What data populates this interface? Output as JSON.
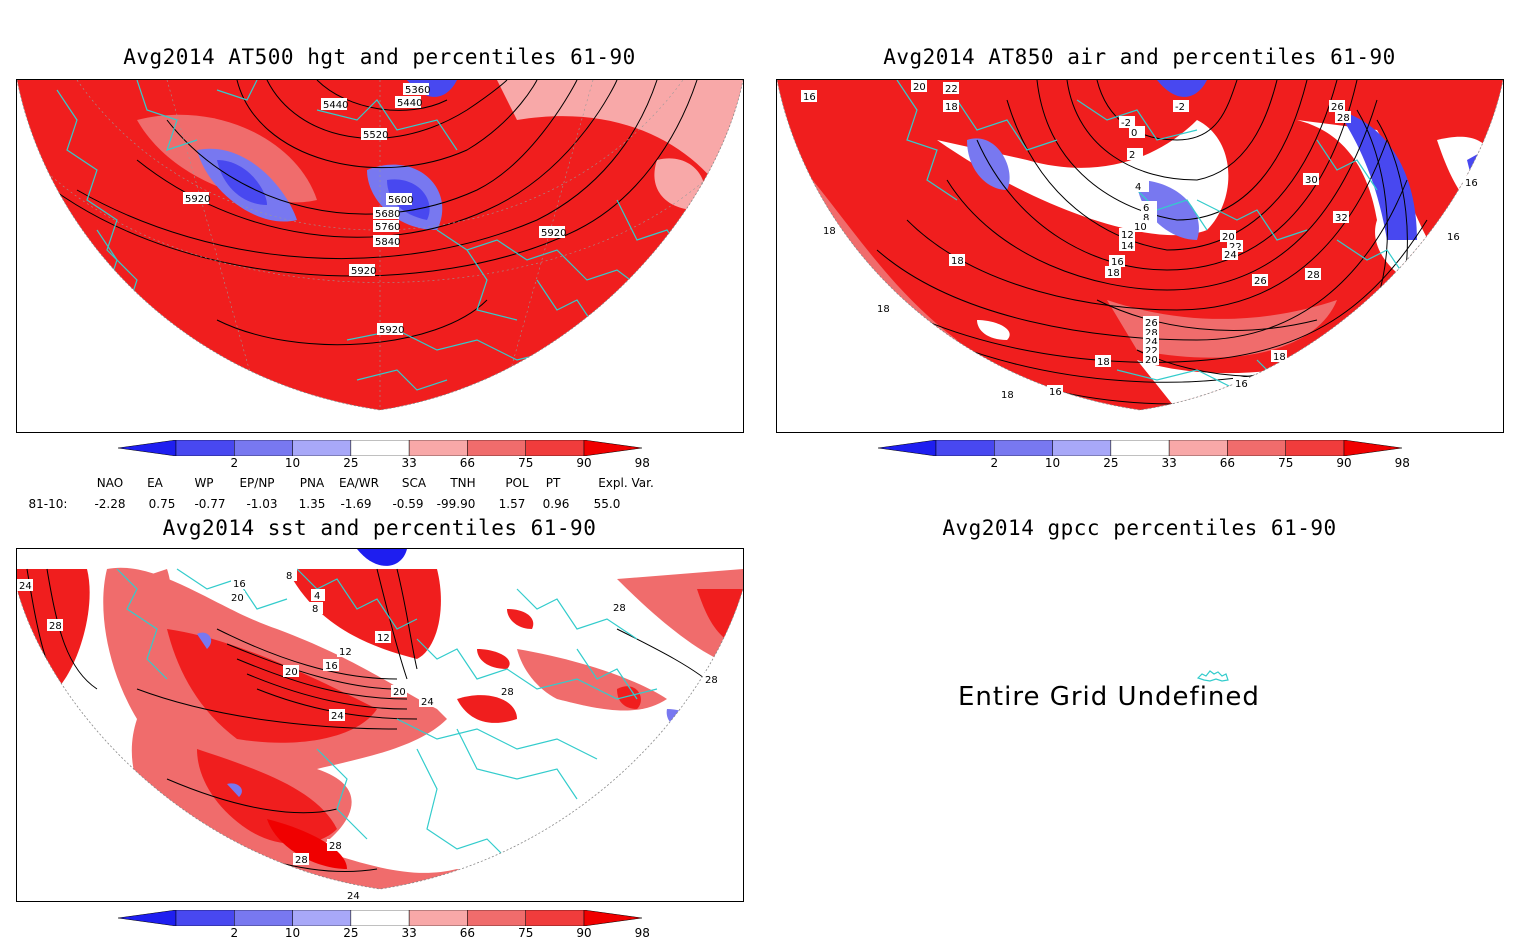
{
  "panels": [
    {
      "title": "Avg2014 AT500 hgt and percentiles 61-90",
      "contour_labels": [
        "5360",
        "5440",
        "5440",
        "5520",
        "5600",
        "5680",
        "5760",
        "5840",
        "5920",
        "5920",
        "5920",
        "5920"
      ]
    },
    {
      "title": "Avg2014 AT850 air and percentiles 61-90",
      "contour_labels": [
        "16",
        "20",
        "22",
        "18",
        "-2",
        "0",
        "2",
        "4",
        "6",
        "8",
        "10",
        "12",
        "14",
        "16",
        "18",
        "20",
        "22",
        "24",
        "26",
        "28",
        "30",
        "32",
        "18",
        "18",
        "18",
        "26",
        "28",
        "24",
        "22",
        "20",
        "18",
        "18",
        "16",
        "16",
        "18",
        "-2",
        "26",
        "28",
        "16",
        "16"
      ]
    },
    {
      "title": "Avg2014 sst and percentiles 61-90",
      "contour_labels": [
        "24",
        "28",
        "16",
        "20",
        "4",
        "8",
        "12",
        "16",
        "20",
        "24",
        "20",
        "24",
        "28",
        "28",
        "28",
        "28",
        "24",
        "28",
        "8",
        "12"
      ]
    },
    {
      "title": "Avg2014 gpcc percentiles 61-90",
      "message": "Entire Grid Undefined"
    }
  ],
  "colorbar": {
    "labels": [
      "2",
      "10",
      "25",
      "33",
      "66",
      "75",
      "90",
      "98"
    ],
    "colors": [
      "#1e1ef0",
      "#4848f0",
      "#7878f0",
      "#a8a8f8",
      "#ffffff",
      "#f8a8a8",
      "#f06c6c",
      "#f03c3c",
      "#f00000"
    ]
  },
  "indices": {
    "headers": [
      "NAO",
      "EA",
      "WP",
      "EP/NP",
      "PNA",
      "EA/WR",
      "SCA",
      "TNH",
      "POL",
      "PT",
      "Expl. Var."
    ],
    "row_label": "81-10:",
    "values": [
      "-2.28",
      "0.75",
      "-0.77",
      "-1.03",
      "1.35",
      "-1.69",
      "-0.59",
      "-99.90",
      "1.57",
      "0.96",
      "55.0"
    ]
  },
  "colors": {
    "coast": "#33cccc",
    "red": "#f01e1e",
    "blue": "#4646f0",
    "contour": "#000000"
  }
}
